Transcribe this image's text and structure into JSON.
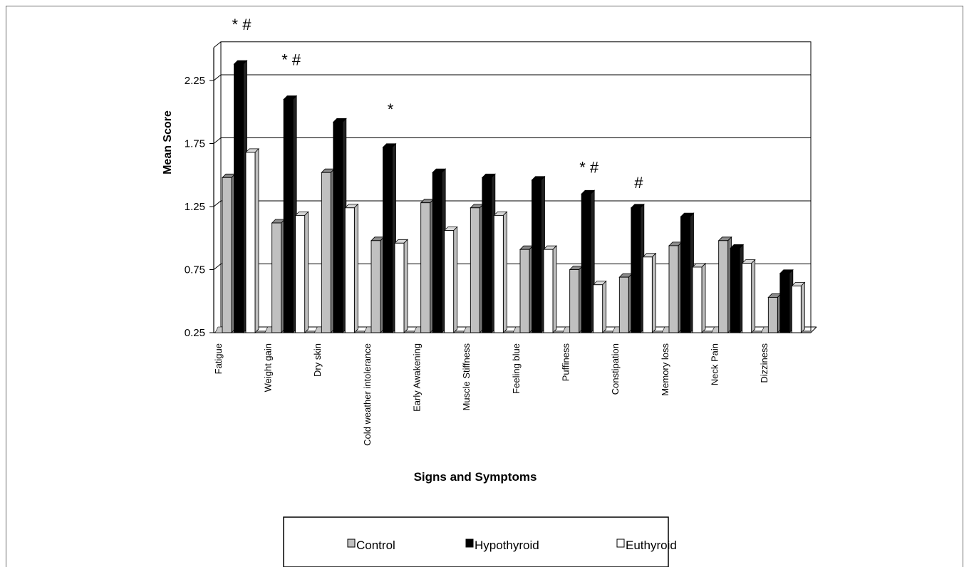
{
  "chart_data": {
    "type": "bar",
    "title": "",
    "xlabel": "Signs and Symptoms",
    "ylabel": "Mean Score",
    "ylim": [
      0.25,
      2.5
    ],
    "yticks": [
      0.25,
      0.75,
      1.25,
      1.75,
      2.25
    ],
    "ytick_labels": [
      "0.25",
      "0.75",
      "1.25",
      "1.75",
      "2.25"
    ],
    "grid": true,
    "legend_position": "bottom",
    "categories": [
      "Fatigue",
      "Weight gain",
      "Dry skin",
      "Cold weather intolerance",
      "Early Awakening",
      "Muscle Stiffness",
      "Feeling blue",
      "Puffiness",
      "Constipation",
      "Memory loss",
      "Neck Pain",
      "Dizziness"
    ],
    "series": [
      {
        "name": "Control",
        "color": "#c0c0c0",
        "values": [
          1.48,
          1.12,
          1.52,
          0.98,
          1.28,
          1.24,
          0.91,
          0.75,
          0.69,
          0.94,
          0.98,
          0.53
        ]
      },
      {
        "name": "Hypothyroid",
        "color": "#000000",
        "values": [
          2.38,
          2.1,
          1.92,
          1.72,
          1.52,
          1.48,
          1.46,
          1.35,
          1.24,
          1.17,
          0.92,
          0.72
        ]
      },
      {
        "name": "Euthyroid",
        "color": "#ffffff",
        "values": [
          1.68,
          1.18,
          1.24,
          0.96,
          1.06,
          1.18,
          0.91,
          0.63,
          0.85,
          0.77,
          0.8,
          0.62
        ]
      }
    ],
    "annotations": [
      {
        "category": "Fatigue",
        "text": "* #"
      },
      {
        "category": "Weight gain",
        "text": "* #"
      },
      {
        "category": "Cold weather intolerance",
        "text": "*"
      },
      {
        "category": "Puffiness",
        "text": "* #"
      },
      {
        "category": "Constipation",
        "text": "#"
      }
    ]
  }
}
